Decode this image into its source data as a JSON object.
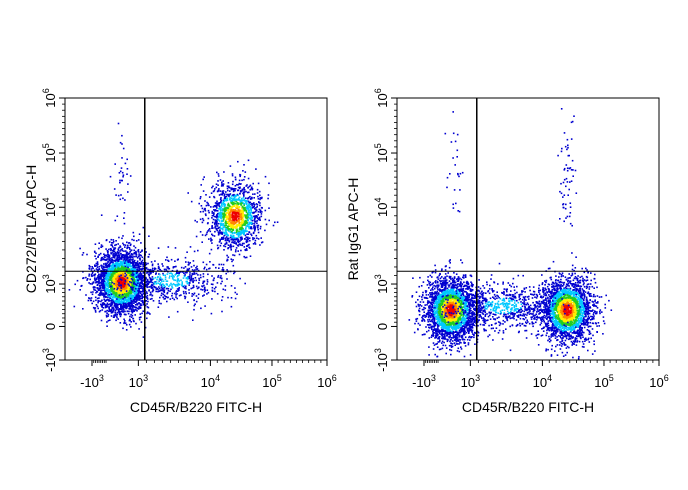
{
  "chart_data": [
    {
      "type": "scatter",
      "plot_style": "flow cytometry pseudocolor density dot plot",
      "xlabel": "CD45R/B220 FITC-H",
      "ylabel": "CD272/BTLA APC-H",
      "x_scale": "biexponential",
      "y_scale": "biexponential",
      "xlim": [
        -2000,
        1000000
      ],
      "ylim": [
        -1000,
        1000000
      ],
      "x_ticks": [
        {
          "value": -1000,
          "base": "-10",
          "exp": "3"
        },
        {
          "value": 1000,
          "base": "10",
          "exp": "3"
        },
        {
          "value": 10000,
          "base": "10",
          "exp": "4"
        },
        {
          "value": 100000,
          "base": "10",
          "exp": "5"
        },
        {
          "value": 1000000,
          "base": "10",
          "exp": "6"
        }
      ],
      "y_ticks": [
        {
          "value": -1000,
          "base": "-10",
          "exp": "3"
        },
        {
          "value": 0,
          "base": "0",
          "exp": ""
        },
        {
          "value": 1000,
          "base": "10",
          "exp": "3"
        },
        {
          "value": 10000,
          "base": "10",
          "exp": "4"
        },
        {
          "value": 100000,
          "base": "10",
          "exp": "5"
        },
        {
          "value": 1000000,
          "base": "10",
          "exp": "6"
        }
      ],
      "gate": {
        "x": 1800,
        "y": 2500
      },
      "populations": [
        {
          "x": 400,
          "y": 1300,
          "count": 3000
        },
        {
          "x": 45000,
          "y": 9000,
          "count": 1400
        },
        {
          "x": 5000,
          "y": 1500,
          "count": 600
        },
        {
          "x": 400,
          "y": 50000,
          "count": 40
        }
      ],
      "density_colors": [
        "#0000d0",
        "#00c8ff",
        "#22cc22",
        "#ffee00",
        "#ff8800",
        "#ee0000"
      ]
    },
    {
      "type": "scatter",
      "plot_style": "flow cytometry pseudocolor density dot plot",
      "xlabel": "CD45R/B220 FITC-H",
      "ylabel": "Rat IgG1 APC-H",
      "x_scale": "biexponential",
      "y_scale": "biexponential",
      "xlim": [
        -2000,
        1000000
      ],
      "ylim": [
        -1000,
        1000000
      ],
      "x_ticks": [
        {
          "value": -1000,
          "base": "-10",
          "exp": "3"
        },
        {
          "value": 1000,
          "base": "10",
          "exp": "3"
        },
        {
          "value": 10000,
          "base": "10",
          "exp": "4"
        },
        {
          "value": 100000,
          "base": "10",
          "exp": "5"
        },
        {
          "value": 1000000,
          "base": "10",
          "exp": "6"
        }
      ],
      "y_ticks": [
        {
          "value": -1000,
          "base": "-10",
          "exp": "3"
        },
        {
          "value": 0,
          "base": "0",
          "exp": ""
        },
        {
          "value": 1000,
          "base": "10",
          "exp": "3"
        },
        {
          "value": 10000,
          "base": "10",
          "exp": "4"
        },
        {
          "value": 100000,
          "base": "10",
          "exp": "5"
        },
        {
          "value": 1000000,
          "base": "10",
          "exp": "6"
        }
      ],
      "gate": {
        "x": 1800,
        "y": 2500
      },
      "populations": [
        {
          "x": 300,
          "y": 400,
          "count": 2600
        },
        {
          "x": 45000,
          "y": 400,
          "count": 2200
        },
        {
          "x": 5000,
          "y": 500,
          "count": 700
        },
        {
          "x": 45000,
          "y": 60000,
          "count": 60
        },
        {
          "x": 400,
          "y": 80000,
          "count": 25
        }
      ],
      "density_colors": [
        "#0000d0",
        "#00c8ff",
        "#22cc22",
        "#ffee00",
        "#ff8800",
        "#ee0000"
      ]
    }
  ]
}
